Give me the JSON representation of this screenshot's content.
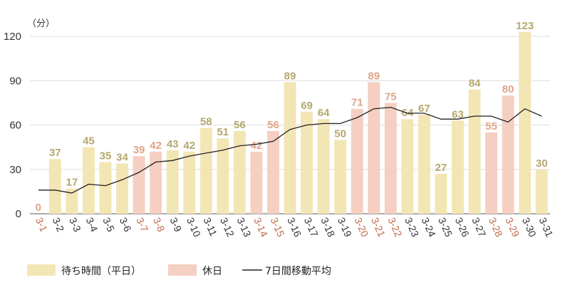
{
  "chart_data": {
    "type": "bar",
    "unit_label": "（分）",
    "y_ticks": [
      "0",
      "30",
      "60",
      "90",
      "120"
    ],
    "ylim": [
      0,
      130
    ],
    "grid": true,
    "legend_position": "bottom-left",
    "categories": [
      "3-1",
      "3-2",
      "3-3",
      "3-4",
      "3-5",
      "3-6",
      "3-7",
      "3-8",
      "3-9",
      "3-10",
      "3-11",
      "3-12",
      "3-13",
      "3-14",
      "3-15",
      "3-16",
      "3-17",
      "3-18",
      "3-19",
      "3-20",
      "3-21",
      "3-22",
      "3-23",
      "3-24",
      "3-25",
      "3-26",
      "3-27",
      "3-28",
      "3-29",
      "3-30",
      "3-31"
    ],
    "values": [
      0,
      37,
      17,
      45,
      35,
      34,
      39,
      42,
      43,
      42,
      58,
      51,
      56,
      42,
      56,
      89,
      69,
      64,
      50,
      71,
      89,
      75,
      64,
      67,
      27,
      63,
      84,
      55,
      80,
      123,
      30
    ],
    "day_type": [
      "holiday",
      "weekday",
      "weekday",
      "weekday",
      "weekday",
      "weekday",
      "holiday",
      "holiday",
      "weekday",
      "weekday",
      "weekday",
      "weekday",
      "weekday",
      "holiday",
      "holiday",
      "weekday",
      "weekday",
      "weekday",
      "weekday",
      "holiday",
      "holiday",
      "holiday",
      "weekday",
      "weekday",
      "weekday",
      "weekday",
      "weekday",
      "holiday",
      "holiday",
      "weekday",
      "weekday"
    ],
    "moving_average": [
      16,
      16,
      14,
      20,
      19,
      23,
      28,
      35,
      36,
      39,
      41,
      43,
      46,
      47,
      49,
      57,
      60,
      61,
      61,
      65,
      71,
      72,
      68,
      68,
      64,
      64,
      66,
      66,
      62,
      71,
      66
    ],
    "series": [
      {
        "name": "待ち時間（平日）",
        "color": "#f3e6b5"
      },
      {
        "name": "休日",
        "color": "#f5cfc2"
      },
      {
        "name": "7日間移動平均",
        "color": "#222222"
      }
    ],
    "colors": {
      "weekday_label": "#b5a76e",
      "holiday_label": "#e0a488",
      "weekday_xlabel": "#333333",
      "holiday_xlabel": "#c06a4c",
      "grid": "#dddddd"
    }
  }
}
